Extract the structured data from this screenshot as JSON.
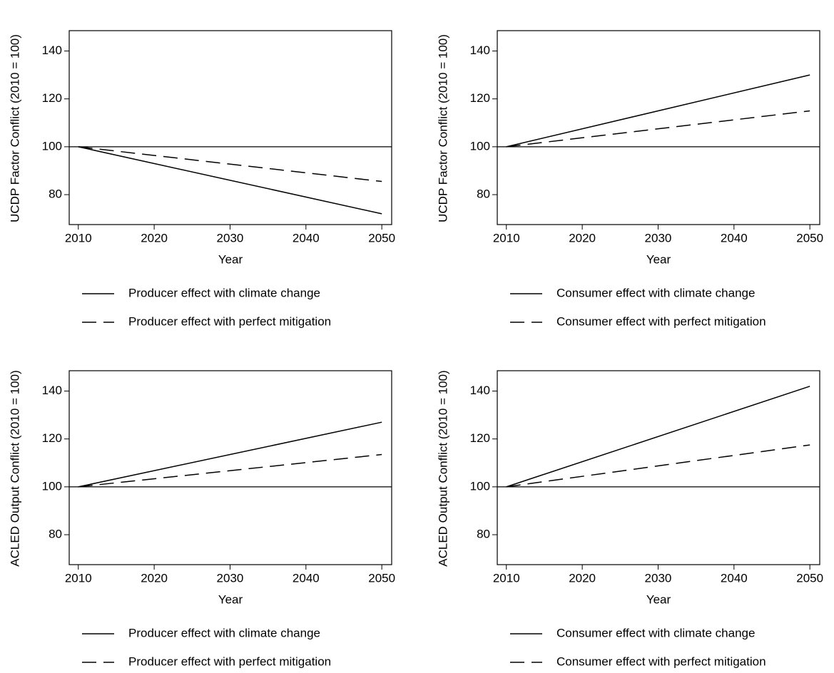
{
  "chart_data": [
    {
      "type": "line",
      "x_label": "Year",
      "y_label": "UCDP Factor Conflict (2010 = 100)",
      "x": [
        2010,
        2050
      ],
      "series": [
        {
          "name": "Producer effect with climate change",
          "color": "#000000",
          "dash": "solid",
          "values": [
            100,
            72
          ]
        },
        {
          "name": "Producer effect with perfect mitigation",
          "color": "#000000",
          "dash": "dashed",
          "values": [
            100,
            85.5
          ]
        }
      ],
      "reference_line": 100,
      "xlim": [
        2008.8,
        2051.3
      ],
      "ylim": [
        67.5,
        148.5
      ],
      "xticks": [
        2010,
        2020,
        2030,
        2040,
        2050
      ],
      "yticks": [
        80,
        100,
        120,
        140
      ]
    },
    {
      "type": "line",
      "x_label": "Year",
      "y_label": "UCDP Factor Conflict (2010 = 100)",
      "x": [
        2010,
        2050
      ],
      "series": [
        {
          "name": "Consumer effect with climate change",
          "color": "#000000",
          "dash": "solid",
          "values": [
            100,
            130
          ]
        },
        {
          "name": "Consumer effect with perfect mitigation",
          "color": "#000000",
          "dash": "dashed",
          "values": [
            100,
            115
          ]
        }
      ],
      "reference_line": 100,
      "xlim": [
        2008.8,
        2051.3
      ],
      "ylim": [
        67.5,
        148.5
      ],
      "xticks": [
        2010,
        2020,
        2030,
        2040,
        2050
      ],
      "yticks": [
        80,
        100,
        120,
        140
      ]
    },
    {
      "type": "line",
      "x_label": "Year",
      "y_label": "ACLED Output Conflict (2010 = 100)",
      "x": [
        2010,
        2050
      ],
      "series": [
        {
          "name": "Producer effect with climate change",
          "color": "#000000",
          "dash": "solid",
          "values": [
            100,
            127
          ]
        },
        {
          "name": "Producer effect with perfect mitigation",
          "color": "#000000",
          "dash": "dashed",
          "values": [
            100,
            113.5
          ]
        }
      ],
      "reference_line": 100,
      "xlim": [
        2008.8,
        2051.3
      ],
      "ylim": [
        67.5,
        148.5
      ],
      "xticks": [
        2010,
        2020,
        2030,
        2040,
        2050
      ],
      "yticks": [
        80,
        100,
        120,
        140
      ]
    },
    {
      "type": "line",
      "x_label": "Year",
      "y_label": "ACLED Output Conflict (2010 = 100)",
      "x": [
        2010,
        2050
      ],
      "series": [
        {
          "name": "Consumer effect with climate change",
          "color": "#000000",
          "dash": "solid",
          "values": [
            100,
            142
          ]
        },
        {
          "name": "Consumer effect with perfect mitigation",
          "color": "#000000",
          "dash": "dashed",
          "values": [
            100,
            117.5
          ]
        }
      ],
      "reference_line": 100,
      "xlim": [
        2008.8,
        2051.3
      ],
      "ylim": [
        67.5,
        148.5
      ],
      "xticks": [
        2010,
        2020,
        2030,
        2040,
        2050
      ],
      "yticks": [
        80,
        100,
        120,
        140
      ]
    }
  ]
}
